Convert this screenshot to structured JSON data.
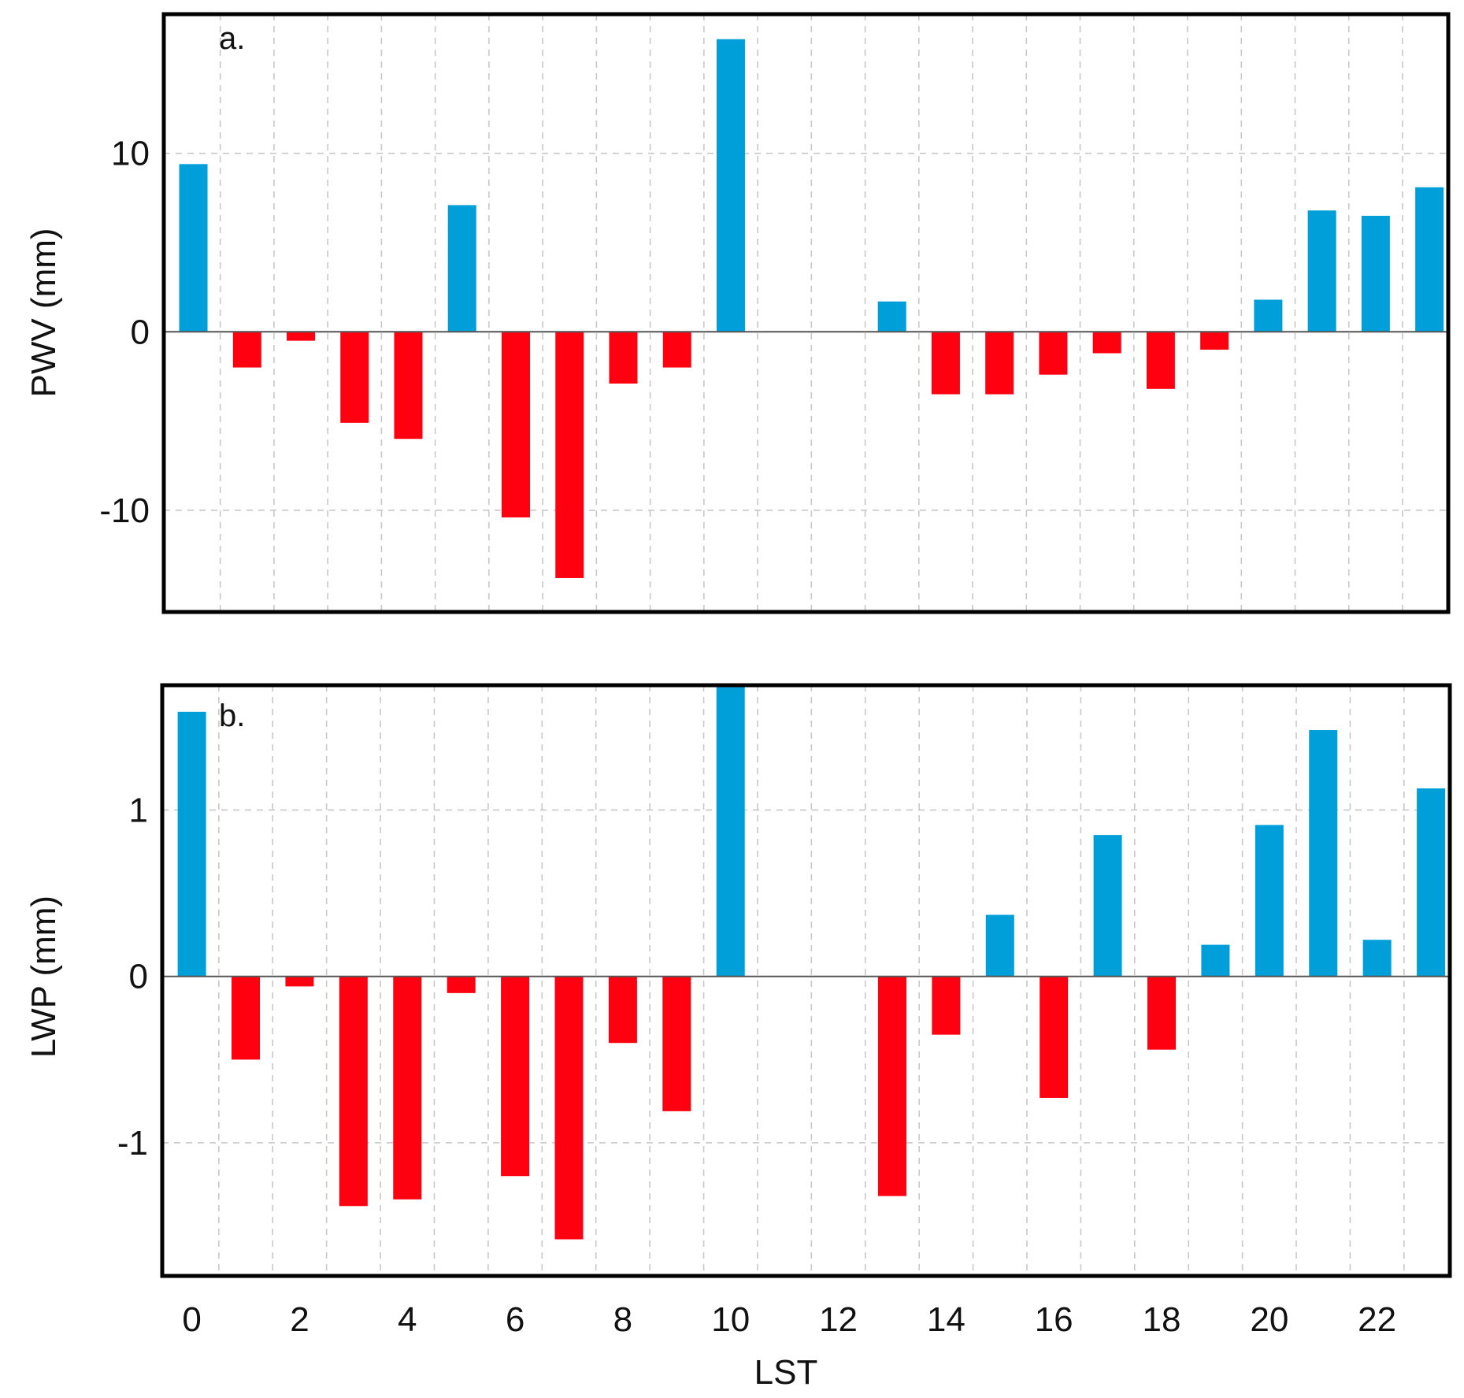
{
  "colors": {
    "positive": "#009FDA",
    "negative": "#FF0010",
    "frame": "#000000",
    "grid": "#C8C8C8"
  },
  "xlabel": "LST",
  "chart_data": [
    {
      "type": "bar",
      "panel_label": "a.",
      "ylabel": "PWV (mm)",
      "xlabel": "LST",
      "x": [
        0,
        1,
        2,
        3,
        4,
        5,
        6,
        7,
        8,
        9,
        10,
        11,
        12,
        13,
        14,
        15,
        16,
        17,
        18,
        19,
        20,
        21,
        22,
        23
      ],
      "values": [
        9.4,
        -2.0,
        -0.5,
        -5.1,
        -6.0,
        7.1,
        -10.4,
        -13.8,
        -2.9,
        -2.0,
        16.4,
        0,
        0,
        1.7,
        -3.5,
        -3.5,
        -2.4,
        -1.2,
        -3.2,
        -1.0,
        1.8,
        6.8,
        6.5,
        8.1
      ],
      "ylim": [
        -15.7,
        17.8
      ],
      "xlim": [
        -0.55,
        23.35
      ],
      "yticks": [
        -10,
        0,
        10
      ],
      "ytick_labels": [
        "-10",
        "0",
        "10"
      ],
      "xticks": [
        0,
        2,
        4,
        6,
        8,
        10,
        12,
        14,
        16,
        18,
        20,
        22
      ],
      "grid": true
    },
    {
      "type": "bar",
      "panel_label": "b.",
      "ylabel": "LWP (mm)",
      "xlabel": "LST",
      "x": [
        0,
        1,
        2,
        3,
        4,
        5,
        6,
        7,
        8,
        9,
        10,
        11,
        12,
        13,
        14,
        15,
        16,
        17,
        18,
        19,
        20,
        21,
        22,
        23
      ],
      "values": [
        1.59,
        -0.5,
        -0.06,
        -1.38,
        -1.34,
        -0.1,
        -1.2,
        -1.58,
        -0.4,
        -0.81,
        1.75,
        0,
        0,
        -1.32,
        -0.35,
        0.37,
        -0.73,
        0.85,
        -0.44,
        0.19,
        0.91,
        1.48,
        0.22,
        1.13
      ],
      "ylim": [
        -1.8,
        1.75
      ],
      "xlim": [
        -0.55,
        23.35
      ],
      "yticks": [
        -1,
        0,
        1
      ],
      "ytick_labels": [
        "-1",
        "0",
        "1"
      ],
      "xticks": [
        0,
        2,
        4,
        6,
        8,
        10,
        12,
        14,
        16,
        18,
        20,
        22
      ],
      "xtick_labels": [
        "0",
        "2",
        "4",
        "6",
        "8",
        "10",
        "12",
        "14",
        "16",
        "18",
        "20",
        "22"
      ],
      "grid": true
    }
  ]
}
